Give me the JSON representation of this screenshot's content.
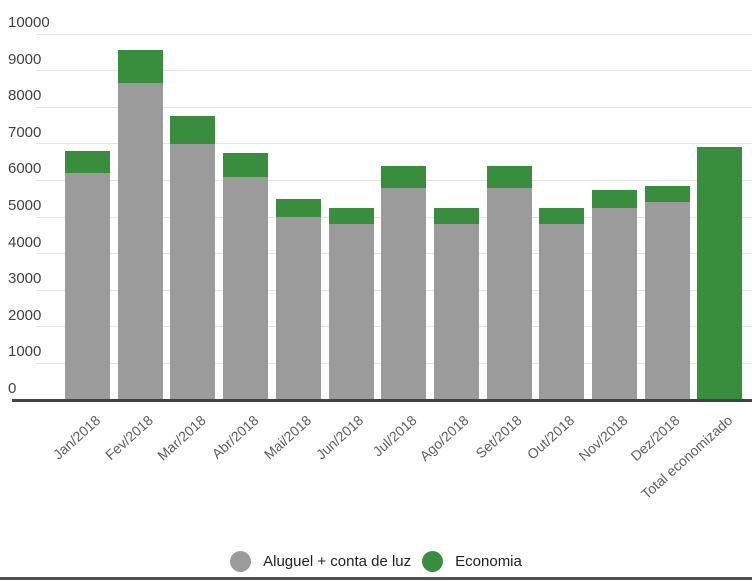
{
  "chart_data": {
    "type": "bar",
    "stacked": true,
    "title": "",
    "categories": [
      "Jan/2018",
      "Fev/2018",
      "Mar/2018",
      "Abr/2018",
      "Mai/2018",
      "Jun/2018",
      "Jul/2018",
      "Ago/2018",
      "Set/2018",
      "Out/2018",
      "Nov/2018",
      "Dez/2018",
      "Total economizado"
    ],
    "series": [
      {
        "name": "Aluguel + conta de luz",
        "color": "#9b9b9b",
        "values": [
          6200,
          8650,
          7000,
          6100,
          5000,
          4800,
          5800,
          4800,
          5800,
          4800,
          5250,
          5400,
          0
        ]
      },
      {
        "name": "Economia",
        "color": "#388e3c",
        "values": [
          600,
          900,
          750,
          650,
          500,
          450,
          600,
          450,
          600,
          450,
          500,
          450,
          6900
        ]
      }
    ],
    "ylim": [
      0,
      10000
    ],
    "ytick_interval": 1000,
    "grid": true,
    "legend_position": "bottom",
    "x_label_rotation_deg": -42
  },
  "axis": {
    "ytick_labels": [
      "0",
      "1000",
      "2000",
      "3000",
      "4000",
      "5000",
      "6000",
      "7000",
      "8000",
      "9000",
      "10000"
    ],
    "ytick_values": [
      0,
      1000,
      2000,
      3000,
      4000,
      5000,
      6000,
      7000,
      8000,
      9000,
      10000
    ]
  },
  "legend": {
    "items": [
      {
        "label": "Aluguel + conta de luz",
        "color": "#9b9b9b"
      },
      {
        "label": "Economia",
        "color": "#388e3c"
      }
    ]
  },
  "colors": {
    "background": "#ffffff",
    "gridline": "#e4e4e4",
    "axis_line": "#424242",
    "y_label": "#424242",
    "x_label": "#5f6063",
    "legend_text": "#222222",
    "bottom_rule": "#4f4f4f",
    "bar_gray": "#9b9b9b",
    "bar_green": "#388e3c"
  }
}
